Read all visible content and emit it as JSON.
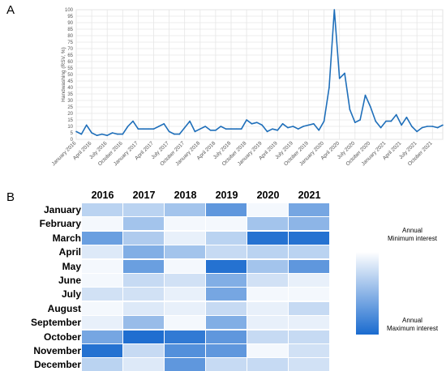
{
  "panels": {
    "a_label": "A",
    "b_label": "B"
  },
  "chart_data": [
    {
      "type": "line",
      "ylabel": "Handwashing (RSV, %)",
      "ylim": [
        0,
        100
      ],
      "yticks": [
        0,
        5,
        10,
        15,
        20,
        25,
        30,
        35,
        40,
        45,
        50,
        55,
        60,
        65,
        70,
        75,
        80,
        85,
        90,
        95,
        100
      ],
      "xtick_labels": [
        "January 2016",
        "April 2016",
        "July 2016",
        "October 2016",
        "January 2017",
        "April 2017",
        "July 2017",
        "October 2017",
        "January 2018",
        "April 2018",
        "July 2018",
        "October 2018",
        "January 2019",
        "April 2019",
        "July 2019",
        "October 2019",
        "January 2020",
        "April 2020",
        "July 2020",
        "October 2020",
        "January 2021",
        "April 2021",
        "July 2021",
        "October 2021"
      ],
      "color": "#1f6fba",
      "grid": true,
      "values": [
        6,
        4,
        11,
        5,
        3,
        4,
        3,
        5,
        4,
        4,
        10,
        14,
        8,
        8,
        8,
        8,
        10,
        12,
        6,
        4,
        4,
        9,
        14,
        6,
        8,
        10,
        7,
        7,
        10,
        8,
        8,
        8,
        8,
        15,
        12,
        13,
        11,
        6,
        8,
        7,
        12,
        9,
        10,
        8,
        10,
        11,
        12,
        7,
        14,
        40,
        100,
        47,
        51,
        23,
        13,
        15,
        34,
        25,
        14,
        9,
        14,
        14,
        19,
        11,
        17,
        10,
        6,
        9,
        10,
        10,
        9,
        11
      ],
      "series": [
        {
          "values": []
        }
      ]
    },
    {
      "type": "heatmap",
      "columns": [
        "2016",
        "2017",
        "2018",
        "2019",
        "2020",
        "2021"
      ],
      "rows": [
        "January",
        "February",
        "March",
        "April",
        "May",
        "June",
        "July",
        "August",
        "September",
        "October",
        "November",
        "December"
      ],
      "legend_min": "Annual\nMinimum interest",
      "legend_max": "Annual\nMaximum interest",
      "color_low": "#ffffff",
      "color_high": "#1a6bcf",
      "values": [
        [
          0.3,
          0.3,
          0.4,
          0.7,
          0.05,
          0.6
        ],
        [
          0.05,
          0.4,
          0.05,
          0.05,
          0.4,
          0.5
        ],
        [
          0.65,
          0.35,
          0.1,
          0.3,
          0.95,
          0.95
        ],
        [
          0.15,
          0.55,
          0.4,
          0.25,
          0.3,
          0.3
        ],
        [
          0.05,
          0.65,
          0.05,
          0.95,
          0.4,
          0.7
        ],
        [
          0.05,
          0.25,
          0.2,
          0.55,
          0.2,
          0.1
        ],
        [
          0.2,
          0.2,
          0.1,
          0.6,
          0.05,
          0.05
        ],
        [
          0.05,
          0.15,
          0.1,
          0.25,
          0.1,
          0.25
        ],
        [
          0.1,
          0.45,
          0.05,
          0.55,
          0.1,
          0.1
        ],
        [
          0.6,
          0.98,
          0.9,
          0.7,
          0.25,
          0.25
        ],
        [
          0.95,
          0.25,
          0.75,
          0.7,
          0.05,
          0.2
        ],
        [
          0.3,
          0.15,
          0.7,
          0.25,
          0.25,
          0.2
        ]
      ]
    }
  ]
}
